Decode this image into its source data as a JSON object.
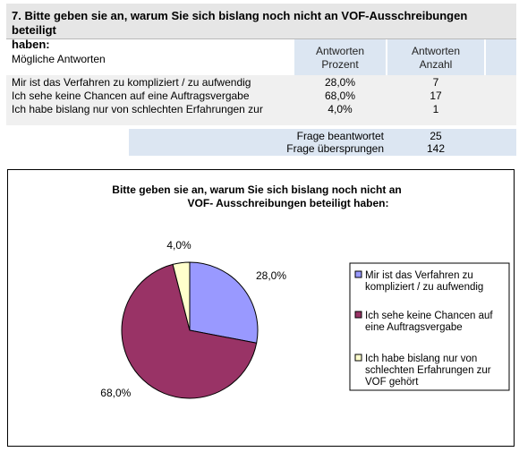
{
  "question": {
    "title_line1": "7. Bitte geben sie an, warum Sie sich bislang noch nicht an VOF-Ausschreibungen beteiligt",
    "title_line2": "haben:"
  },
  "table": {
    "header_label": "Mögliche Antworten",
    "col_percent_line1": "Antworten",
    "col_percent_line2": "Prozent",
    "col_count_line1": "Antworten",
    "col_count_line2": "Anzahl",
    "rows": [
      {
        "answer": "Mir ist das Verfahren zu kompliziert / zu aufwendig",
        "percent": "28,0%",
        "count": "7"
      },
      {
        "answer": "Ich sehe keine Chancen auf eine Auftragsvergabe",
        "percent": "68,0%",
        "count": "17"
      },
      {
        "answer": "Ich habe bislang nur von schlechten Erfahrungen zur",
        "percent": "4,0%",
        "count": "1"
      }
    ]
  },
  "stats": {
    "answered_label": "Frage beantwortet",
    "answered_value": "25",
    "skipped_label": "Frage übersprungen",
    "skipped_value": "142"
  },
  "chart_data": {
    "type": "pie",
    "title_line1": "Bitte geben sie an, warum Sie sich bislang noch nicht an",
    "title_line2": "VOF- Ausschreibungen beteiligt haben:",
    "legend_position": "right",
    "slices": [
      {
        "label": "Mir ist das Verfahren zu kompliziert / zu aufwendig",
        "value": 28.0,
        "display": "28,0%",
        "color": "#9999ff"
      },
      {
        "label": "Ich sehe keine Chancen auf eine Auftragsvergabe",
        "value": 68.0,
        "display": "68,0%",
        "color": "#993366"
      },
      {
        "label": "Ich habe bislang nur von schlechten Erfahrungen zur VOF gehört",
        "value": 4.0,
        "display": "4,0%",
        "color": "#ffffcc"
      }
    ],
    "legend": [
      {
        "lines": [
          "Mir ist das Verfahren zu",
          "kompliziert / zu aufwendig"
        ]
      },
      {
        "lines": [
          "Ich sehe keine Chancen auf",
          "eine Auftragsvergabe"
        ]
      },
      {
        "lines": [
          "Ich habe bislang nur von",
          "schlechten Erfahrungen zur",
          "VOF gehört"
        ]
      }
    ]
  }
}
